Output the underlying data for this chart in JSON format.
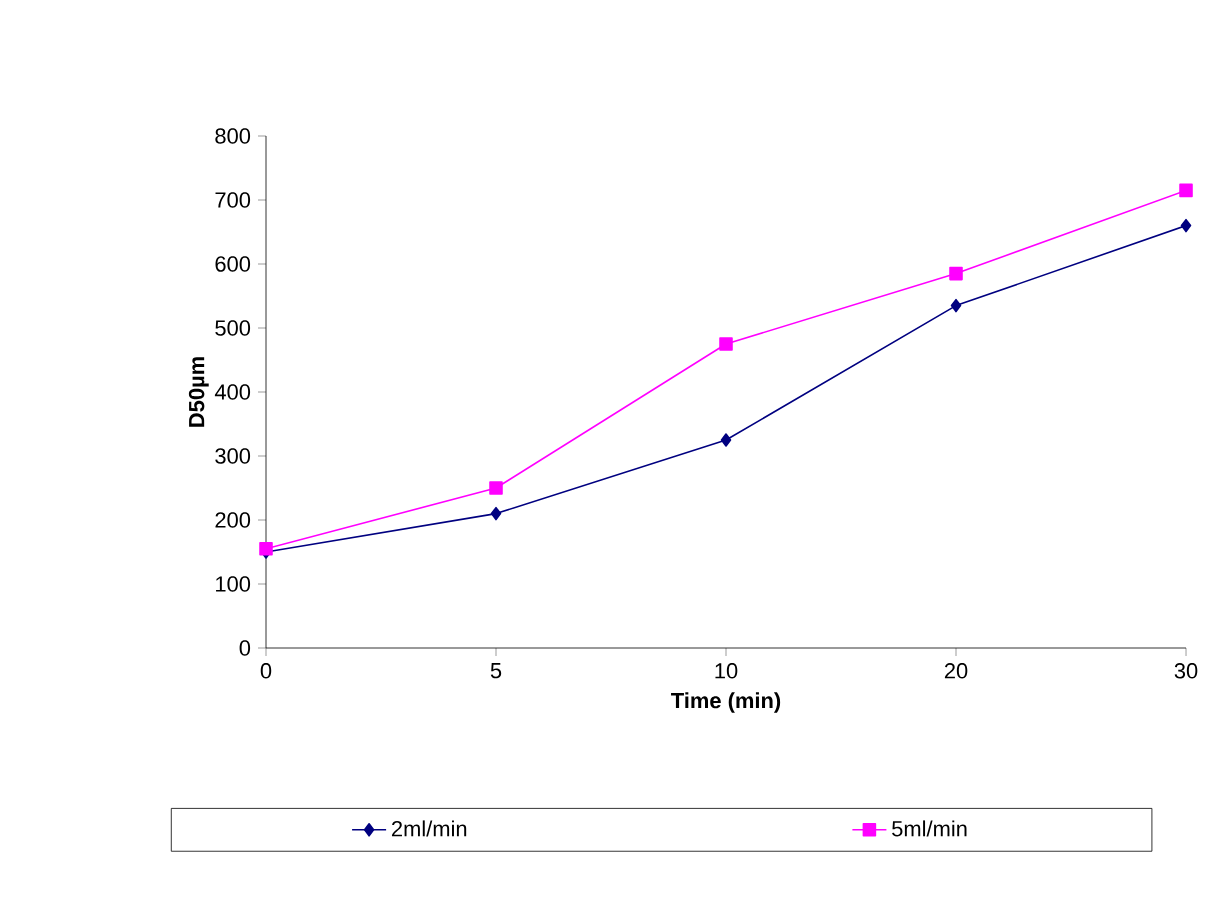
{
  "chart_data": {
    "type": "line",
    "xlabel": "Time (min)",
    "ylabel": "D50µm",
    "categories": [
      "0",
      "5",
      "10",
      "20",
      "30"
    ],
    "series": [
      {
        "name": "2ml/min",
        "color": "#000080",
        "marker": "diamond",
        "values": [
          150,
          210,
          325,
          535,
          660
        ]
      },
      {
        "name": "5ml/min",
        "color": "#ff00ff",
        "marker": "square",
        "values": [
          155,
          250,
          475,
          585,
          715
        ]
      }
    ],
    "ylim": [
      0,
      800
    ],
    "yticks": [
      0,
      100,
      200,
      300,
      400,
      500,
      600,
      700,
      800
    ],
    "grid": false,
    "legend": "bottom"
  }
}
